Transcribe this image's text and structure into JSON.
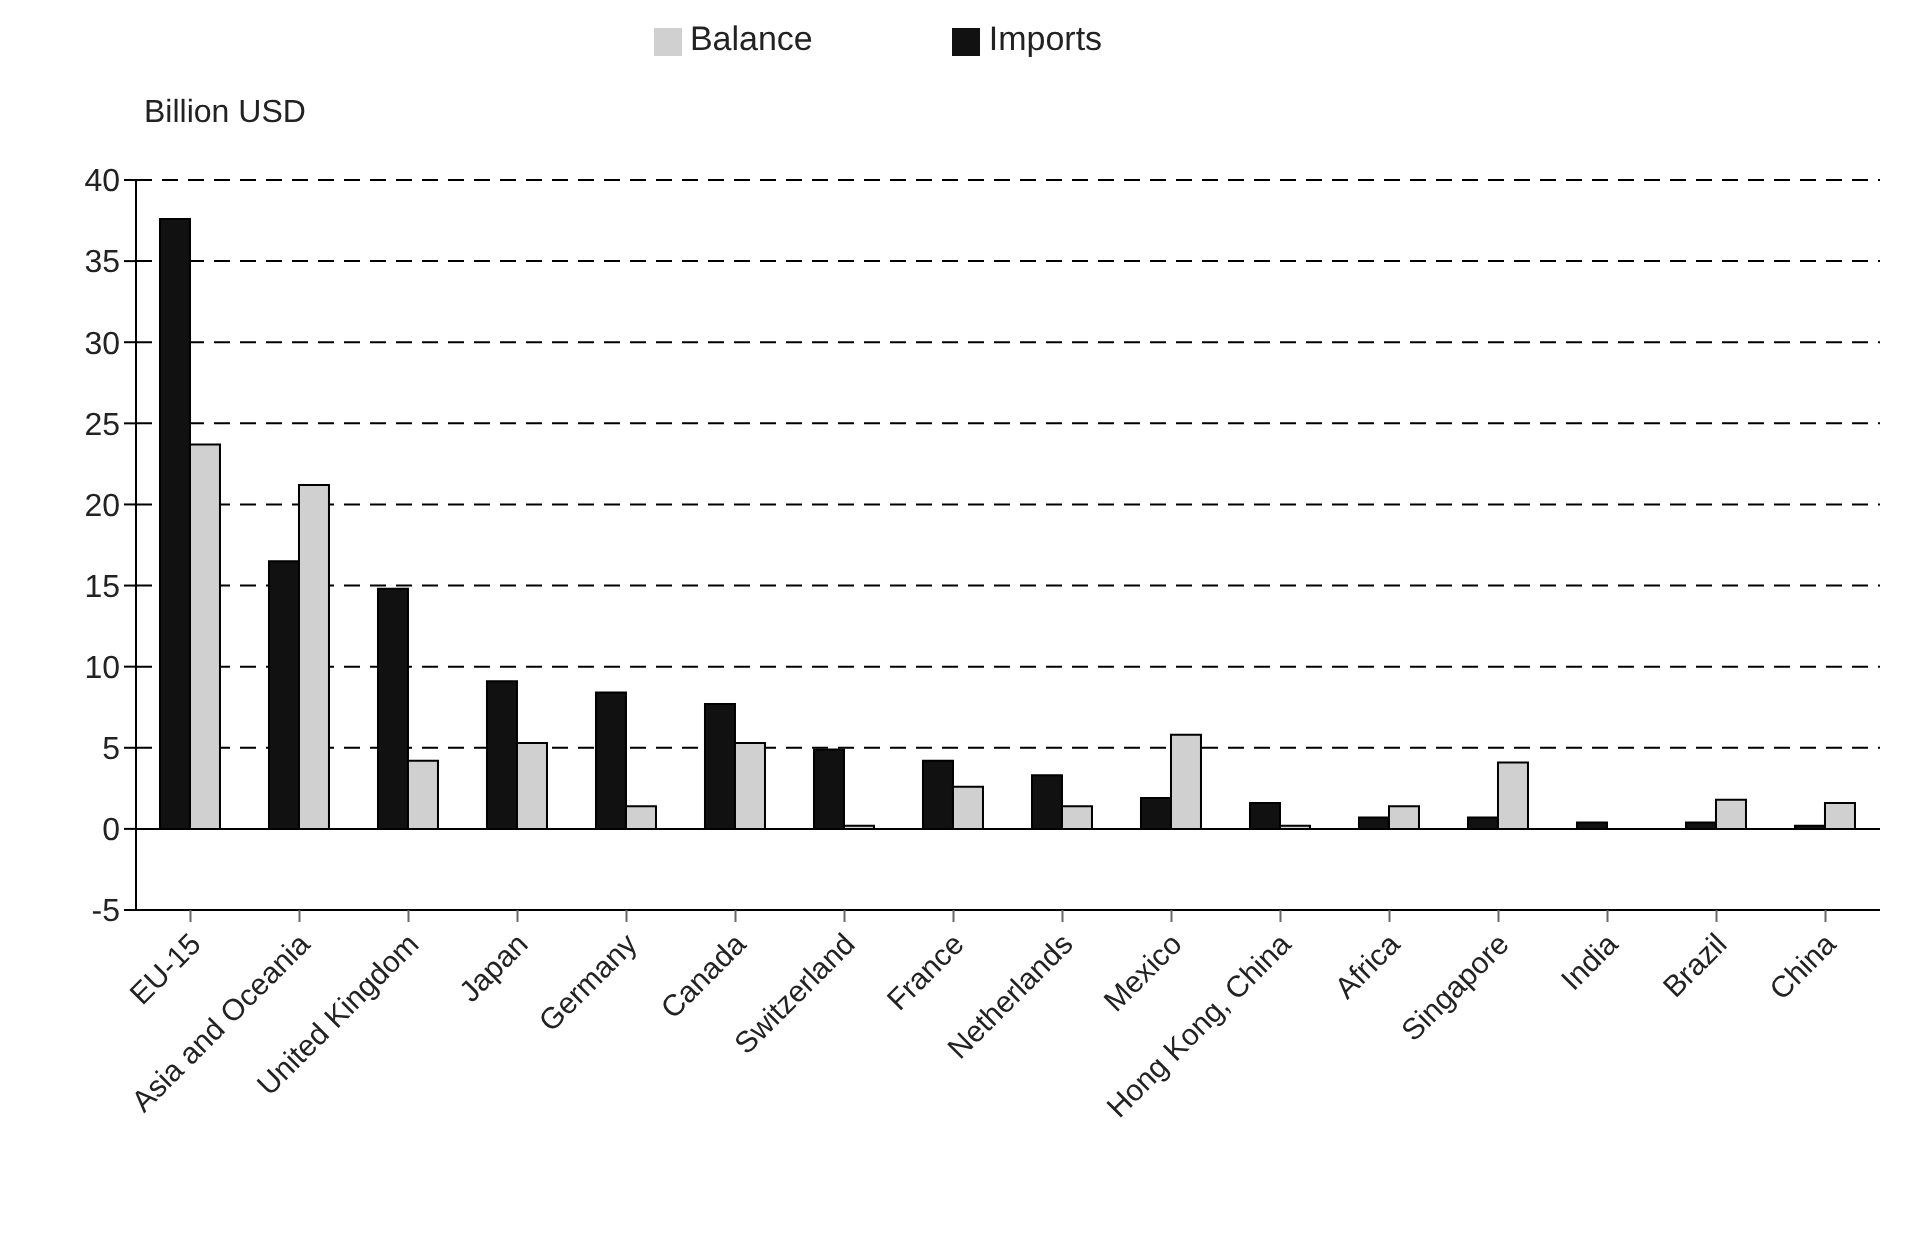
{
  "chart_data": {
    "type": "bar",
    "ylabel": "Billion USD",
    "categories": [
      "EU-15",
      "Asia and Oceania",
      "United Kingdom",
      "Japan",
      "Germany",
      "Canada",
      "Switzerland",
      "France",
      "Netherlands",
      "Mexico",
      "Hong Kong, China",
      "Africa",
      "Singapore",
      "India",
      "Brazil",
      "China"
    ],
    "series": [
      {
        "name": "Imports",
        "color": "#111111",
        "values": [
          37.6,
          16.5,
          14.8,
          9.1,
          8.4,
          7.7,
          4.9,
          4.2,
          3.3,
          1.9,
          1.6,
          0.7,
          0.7,
          0.4,
          0.4,
          0.2
        ]
      },
      {
        "name": "Balance",
        "color": "#d0d0d0",
        "values": [
          23.7,
          21.2,
          4.2,
          5.3,
          1.4,
          5.3,
          0.2,
          2.6,
          1.4,
          5.8,
          0.2,
          1.4,
          4.1,
          0,
          1.8,
          1.6
        ]
      }
    ],
    "ylim": [
      -5,
      40
    ],
    "yticks": [
      -5,
      0,
      5,
      10,
      15,
      20,
      25,
      30,
      35,
      40
    ],
    "grid": "y",
    "legend": "top",
    "ref_lines": [
      {
        "axis": "y",
        "value": 0,
        "color": "#000000",
        "line_style": "solid"
      }
    ]
  }
}
